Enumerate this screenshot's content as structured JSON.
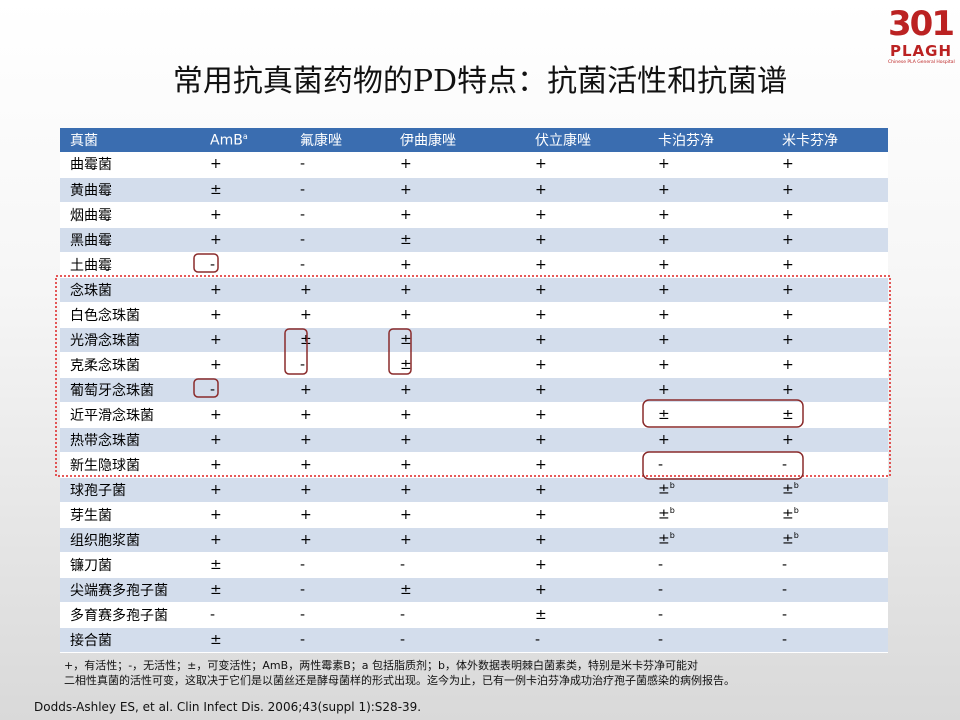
{
  "logo": {
    "number": "301",
    "name": "PLAGH",
    "subtitle": "Chinese PLA General Hospital"
  },
  "title": "常用抗真菌药物的PD特点：抗菌活性和抗菌谱",
  "table": {
    "header": [
      "真菌",
      {
        "text": "AmB",
        "sup": "a"
      },
      "氟康唑",
      "伊曲康唑",
      "伏立康唑",
      "卡泊芬净",
      "米卡芬净"
    ],
    "rows": [
      [
        "曲霉菌",
        "+",
        "-",
        "+",
        "+",
        "+",
        "+"
      ],
      [
        "黄曲霉",
        "±",
        "-",
        "+",
        "+",
        "+",
        "+"
      ],
      [
        "烟曲霉",
        "+",
        "-",
        "+",
        "+",
        "+",
        "+"
      ],
      [
        "黑曲霉",
        "+",
        "-",
        "±",
        "+",
        "+",
        "+"
      ],
      [
        "土曲霉",
        "-",
        "-",
        "+",
        "+",
        "+",
        "+"
      ],
      [
        "念珠菌",
        "+",
        "+",
        "+",
        "+",
        "+",
        "+"
      ],
      [
        "白色念珠菌",
        "+",
        "+",
        "+",
        "+",
        "+",
        "+"
      ],
      [
        "光滑念珠菌",
        "+",
        "±",
        "±",
        "+",
        "+",
        "+"
      ],
      [
        "克柔念珠菌",
        "+",
        "-",
        "±",
        "+",
        "+",
        "+"
      ],
      [
        "葡萄牙念珠菌",
        "-",
        "+",
        "+",
        "+",
        "+",
        "+"
      ],
      [
        "近平滑念珠菌",
        "+",
        "+",
        "+",
        "+",
        "±",
        "±"
      ],
      [
        "热带念珠菌",
        "+",
        "+",
        "+",
        "+",
        "+",
        "+"
      ],
      [
        "新生隐球菌",
        "+",
        "+",
        "+",
        "+",
        "-",
        "-"
      ],
      [
        "球孢子菌",
        "+",
        "+",
        "+",
        "+",
        {
          "text": "±",
          "sup": "b"
        },
        {
          "text": "±",
          "sup": "b"
        }
      ],
      [
        "芽生菌",
        "+",
        "+",
        "+",
        "+",
        {
          "text": "±",
          "sup": "b"
        },
        {
          "text": "±",
          "sup": "b"
        }
      ],
      [
        "组织胞浆菌",
        "+",
        "+",
        "+",
        "+",
        {
          "text": "±",
          "sup": "b"
        },
        {
          "text": "±",
          "sup": "b"
        }
      ],
      [
        "镰刀菌",
        "±",
        "-",
        "-",
        "+",
        "-",
        "-"
      ],
      [
        "尖端赛多孢子菌",
        "±",
        "-",
        "±",
        "+",
        "-",
        "-"
      ],
      [
        "多育赛多孢子菌",
        "-",
        "-",
        "-",
        "±",
        "-",
        "-"
      ],
      [
        "接合菌",
        "±",
        "-",
        "-",
        "-",
        "-",
        "-"
      ]
    ]
  },
  "footnote": [
    "+，有活性；-，无活性；±，可变活性；AmB，两性霉素B；a 包括脂质剂；b，体外数据表明棘白菌素类，特别是米卡芬净可能对",
    "二相性真菌的活性可变，这取决于它们是以菌丝还是酵母菌样的形式出现。迄今为止，已有一例卡泊芬净成功治疗孢子菌感染的病例报告。"
  ],
  "citation": "Dodds-Ashley ES, et al. Clin Infect Dis. 2006;43(suppl 1):S28-39."
}
